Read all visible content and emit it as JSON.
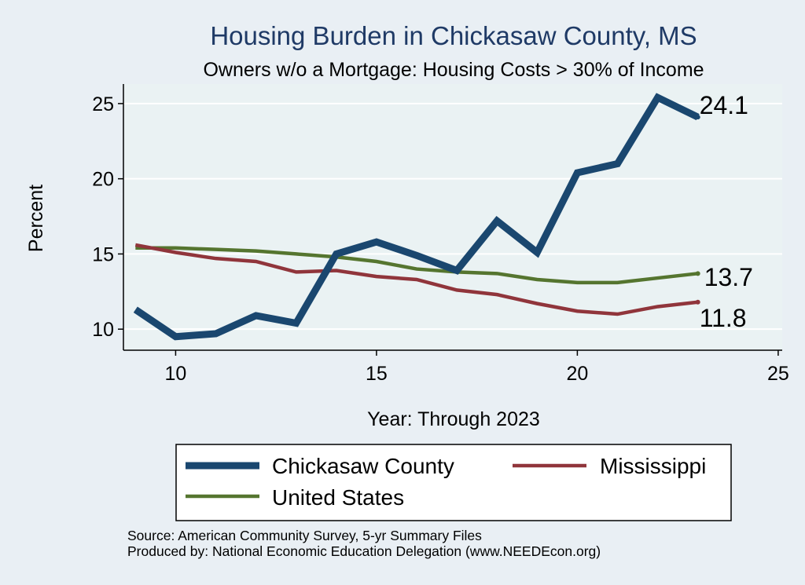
{
  "chart_data": {
    "type": "line",
    "title": "Housing Burden in Chickasaw County, MS",
    "subtitle": "Owners w/o a Mortgage: Housing Costs > 30% of Income",
    "xlabel": "Year: Through 2023",
    "ylabel": "Percent",
    "xlim": [
      8.7,
      25.1
    ],
    "ylim": [
      8.6,
      26.3
    ],
    "xticks": [
      10,
      15,
      20,
      25
    ],
    "yticks": [
      10,
      15,
      20,
      25
    ],
    "grid": true,
    "legend_position": "bottom",
    "series": [
      {
        "name": "Chickasaw County",
        "color": "#1a476f",
        "width": "thick",
        "x": [
          9,
          10,
          11,
          12,
          13,
          14,
          15,
          16,
          17,
          18,
          19,
          20,
          21,
          22,
          23
        ],
        "values": [
          11.3,
          9.5,
          9.7,
          10.9,
          10.4,
          15.0,
          15.8,
          14.9,
          13.9,
          17.2,
          15.1,
          20.4,
          21.0,
          25.4,
          24.1
        ],
        "end_label": "24.1"
      },
      {
        "name": "Mississippi",
        "color": "#90353b",
        "width": "medium",
        "x": [
          9,
          10,
          11,
          12,
          13,
          14,
          15,
          16,
          17,
          18,
          19,
          20,
          21,
          22,
          23
        ],
        "values": [
          15.6,
          15.1,
          14.7,
          14.5,
          13.8,
          13.9,
          13.5,
          13.3,
          12.6,
          12.3,
          11.7,
          11.2,
          11.0,
          11.5,
          11.8
        ],
        "end_label": "11.8"
      },
      {
        "name": "United States",
        "color": "#55752f",
        "width": "medium",
        "x": [
          9,
          10,
          11,
          12,
          13,
          14,
          15,
          16,
          17,
          18,
          19,
          20,
          21,
          22,
          23
        ],
        "values": [
          15.4,
          15.4,
          15.3,
          15.2,
          15.0,
          14.8,
          14.5,
          14.0,
          13.8,
          13.7,
          13.3,
          13.1,
          13.1,
          13.4,
          13.7
        ],
        "end_label": "13.7"
      }
    ]
  },
  "notes": {
    "source": "Source: American Community Survey, 5-yr Summary Files",
    "produced": "Produced by: National Economic Education Delegation (www.NEEDEcon.org)"
  }
}
